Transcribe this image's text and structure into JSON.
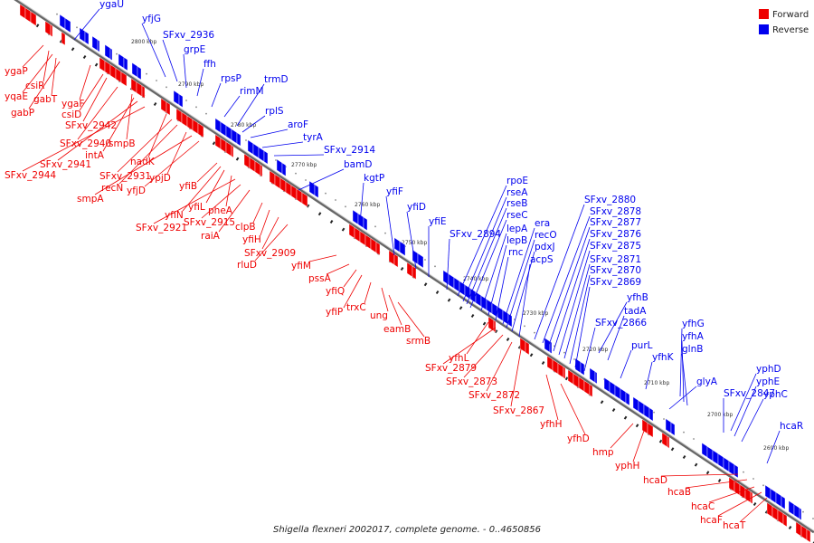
{
  "caption": "Shigella flexneri 2002017, complete genome. - 0..4650856",
  "legend": {
    "items": [
      {
        "label": "Forward",
        "color": "#ee0000"
      },
      {
        "label": "Reverse",
        "color": "#0000ee"
      }
    ]
  },
  "colors": {
    "forward": "#ee0000",
    "reverse": "#0000ee",
    "axis": "#777777",
    "leader_forward": "#ee0000",
    "leader_reverse": "#0000ee"
  },
  "ticks": [
    "2800 kbp",
    "2790 kbp",
    "2780 kbp",
    "2770 kbp",
    "2760 kbp",
    "2750 kbp",
    "2740 kbp",
    "2730 kbp",
    "2720 kbp",
    "2710 kbp",
    "2700 kbp",
    "2690 kbp"
  ],
  "reverse_labels": [
    "ygaU",
    "yfjG",
    "SFxv_2936",
    "grpE",
    "ffh",
    "rpsP",
    "rimM",
    "trmD",
    "rplS",
    "aroF",
    "tyrA",
    "SFxv_2914",
    "bamD",
    "kgtP",
    "yfiF",
    "yfiD",
    "yfiE",
    "SFxv_2894",
    "rpoE",
    "rseA",
    "rseB",
    "rseC",
    "lepA",
    "lepB",
    "rnc",
    "era",
    "recO",
    "pdxJ",
    "acpS",
    "SFxv_2880",
    "SFxv_2878",
    "SFxv_2877",
    "SFxv_2876",
    "SFxv_2875",
    "SFxv_2871",
    "SFxv_2870",
    "SFxv_2869",
    "yfhB",
    "tadA",
    "SFxv_2866",
    "purL",
    "yfhG",
    "yfhA",
    "glnB",
    "yfhK",
    "glyA",
    "yphD",
    "yphE",
    "yphC",
    "SFxv_2847",
    "hcaR"
  ],
  "forward_labels": [
    "ygaP",
    "csiR",
    "yqaE",
    "gabT",
    "gabP",
    "ygaF",
    "csiD",
    "SFxv_2942",
    "SFxv_2940",
    "smpB",
    "intA",
    "SFxv_2941",
    "SFxv_2944",
    "nadK",
    "SFxv_2931",
    "recN",
    "ypjD",
    "smpA",
    "yfjD",
    "yfiB",
    "yfiN",
    "yfiL",
    "pheA",
    "SFxv_2921",
    "SFxv_2915",
    "raiA",
    "clpB",
    "yfiH",
    "SFxv_2909",
    "rluD",
    "yfiM",
    "pssA",
    "yfiQ",
    "yfiP",
    "trxC",
    "ung",
    "eamB",
    "srmB",
    "yfhL",
    "SFxv_2879",
    "SFxv_2873",
    "SFxv_2872",
    "SFxv_2867",
    "yfhH",
    "yfhD",
    "hmp",
    "yphH",
    "hcaD",
    "hcaB",
    "hcaC",
    "hcaF",
    "hcaT"
  ]
}
